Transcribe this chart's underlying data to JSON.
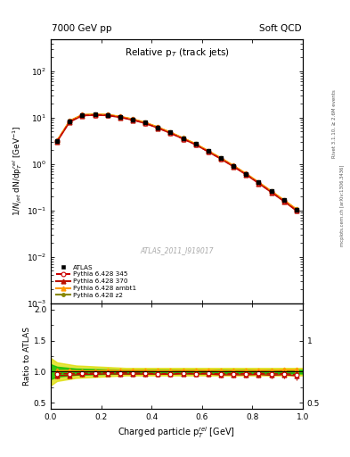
{
  "title_left": "7000 GeV pp",
  "title_right": "Soft QCD",
  "plot_title": "Relative p$_{T}$ (track jets)",
  "ylabel_main": "$1/N_{jet}$ dN/dp$_{T}^{rel}$ [GeV$^{-1}$]",
  "ylabel_ratio": "Ratio to ATLAS",
  "xlabel": "Charged particle p$_{T}^{rel}$ [GeV]",
  "right_label_top": "Rivet 3.1.10, ≥ 2.6M events",
  "right_label_bottom": "mcplots.cern.ch [arXiv:1306.3436]",
  "watermark": "ATLAS_2011_I919017",
  "xlim": [
    0.0,
    1.0
  ],
  "ylim_main": [
    0.001,
    500.0
  ],
  "ylim_ratio": [
    0.4,
    2.1
  ],
  "atlas_x": [
    0.025,
    0.075,
    0.125,
    0.175,
    0.225,
    0.275,
    0.325,
    0.375,
    0.425,
    0.475,
    0.525,
    0.575,
    0.625,
    0.675,
    0.725,
    0.775,
    0.825,
    0.875,
    0.925,
    0.975
  ],
  "atlas_y": [
    3.2,
    8.5,
    11.5,
    11.8,
    11.5,
    10.5,
    9.2,
    7.8,
    6.2,
    4.8,
    3.6,
    2.7,
    1.9,
    1.35,
    0.92,
    0.62,
    0.4,
    0.26,
    0.165,
    0.105
  ],
  "atlas_yerr": [
    0.15,
    0.3,
    0.4,
    0.4,
    0.4,
    0.35,
    0.3,
    0.25,
    0.2,
    0.15,
    0.12,
    0.09,
    0.07,
    0.05,
    0.035,
    0.025,
    0.015,
    0.012,
    0.008,
    0.006
  ],
  "p345_x": [
    0.025,
    0.075,
    0.125,
    0.175,
    0.225,
    0.275,
    0.325,
    0.375,
    0.425,
    0.475,
    0.525,
    0.575,
    0.625,
    0.675,
    0.725,
    0.775,
    0.825,
    0.875,
    0.925,
    0.975
  ],
  "p345_y": [
    3.1,
    8.2,
    11.2,
    11.5,
    11.3,
    10.3,
    9.0,
    7.6,
    6.0,
    4.65,
    3.5,
    2.62,
    1.85,
    1.3,
    0.89,
    0.6,
    0.39,
    0.25,
    0.16,
    0.1
  ],
  "p370_x": [
    0.025,
    0.075,
    0.125,
    0.175,
    0.225,
    0.275,
    0.325,
    0.375,
    0.425,
    0.475,
    0.525,
    0.575,
    0.625,
    0.675,
    0.725,
    0.775,
    0.825,
    0.875,
    0.925,
    0.975
  ],
  "p370_y": [
    3.0,
    8.0,
    11.0,
    11.3,
    11.1,
    10.1,
    8.85,
    7.5,
    5.95,
    4.6,
    3.48,
    2.6,
    1.83,
    1.28,
    0.875,
    0.588,
    0.382,
    0.245,
    0.157,
    0.098
  ],
  "pambt1_x": [
    0.025,
    0.075,
    0.125,
    0.175,
    0.225,
    0.275,
    0.325,
    0.375,
    0.425,
    0.475,
    0.525,
    0.575,
    0.625,
    0.675,
    0.725,
    0.775,
    0.825,
    0.875,
    0.925,
    0.975
  ],
  "pambt1_y": [
    3.25,
    8.65,
    11.65,
    11.95,
    11.75,
    10.7,
    9.4,
    7.95,
    6.3,
    4.88,
    3.68,
    2.75,
    1.95,
    1.37,
    0.94,
    0.63,
    0.41,
    0.265,
    0.17,
    0.108
  ],
  "pz2_x": [
    0.025,
    0.075,
    0.125,
    0.175,
    0.225,
    0.275,
    0.325,
    0.375,
    0.425,
    0.475,
    0.525,
    0.575,
    0.625,
    0.675,
    0.725,
    0.775,
    0.825,
    0.875,
    0.925,
    0.975
  ],
  "pz2_y": [
    3.2,
    8.55,
    11.55,
    11.85,
    11.65,
    10.6,
    9.3,
    7.88,
    6.25,
    4.83,
    3.64,
    2.72,
    1.92,
    1.35,
    0.925,
    0.622,
    0.405,
    0.261,
    0.167,
    0.106
  ],
  "ratio_345_y": [
    0.97,
    0.965,
    0.974,
    0.975,
    0.983,
    0.981,
    0.978,
    0.974,
    0.968,
    0.969,
    0.972,
    0.97,
    0.974,
    0.963,
    0.967,
    0.968,
    0.975,
    0.962,
    0.97,
    0.952
  ],
  "ratio_370_y": [
    0.937,
    0.941,
    0.957,
    0.958,
    0.965,
    0.962,
    0.961,
    0.962,
    0.96,
    0.958,
    0.967,
    0.963,
    0.963,
    0.948,
    0.95,
    0.948,
    0.955,
    0.942,
    0.952,
    0.933
  ],
  "ratio_ambt1_y": [
    1.016,
    1.018,
    1.013,
    1.013,
    1.022,
    1.019,
    1.022,
    1.019,
    1.016,
    1.017,
    1.022,
    1.019,
    1.026,
    1.015,
    1.022,
    1.016,
    1.025,
    1.019,
    1.03,
    1.029
  ],
  "ratio_z2_y": [
    1.0,
    1.006,
    1.004,
    1.004,
    1.013,
    1.01,
    1.011,
    1.01,
    1.008,
    1.006,
    1.011,
    1.007,
    1.011,
    1.0,
    1.005,
    1.003,
    1.013,
    1.004,
    1.012,
    1.01
  ],
  "ratio_yerr_345": [
    0.05,
    0.04,
    0.035,
    0.035,
    0.035,
    0.035,
    0.035,
    0.035,
    0.035,
    0.035,
    0.035,
    0.035,
    0.04,
    0.04,
    0.04,
    0.045,
    0.045,
    0.05,
    0.055,
    0.065
  ],
  "ratio_yerr_370": [
    0.05,
    0.04,
    0.035,
    0.035,
    0.035,
    0.035,
    0.035,
    0.035,
    0.035,
    0.035,
    0.035,
    0.035,
    0.04,
    0.04,
    0.04,
    0.045,
    0.045,
    0.05,
    0.055,
    0.065
  ],
  "ratio_yerr_ambt1": [
    0.05,
    0.04,
    0.035,
    0.035,
    0.035,
    0.035,
    0.035,
    0.035,
    0.035,
    0.035,
    0.035,
    0.035,
    0.04,
    0.04,
    0.04,
    0.045,
    0.045,
    0.05,
    0.055,
    0.065
  ],
  "ratio_yerr_z2": [
    0.05,
    0.04,
    0.035,
    0.035,
    0.035,
    0.035,
    0.035,
    0.035,
    0.035,
    0.035,
    0.035,
    0.035,
    0.04,
    0.04,
    0.04,
    0.045,
    0.045,
    0.05,
    0.055,
    0.065
  ],
  "band_x": [
    0.0,
    0.025,
    0.1,
    0.2,
    0.3,
    0.4,
    0.5,
    0.6,
    0.7,
    0.8,
    0.9,
    1.0
  ],
  "band_green_low": [
    0.88,
    0.92,
    0.95,
    0.96,
    0.97,
    0.97,
    0.97,
    0.97,
    0.97,
    0.97,
    0.97,
    0.97
  ],
  "band_green_high": [
    1.12,
    1.08,
    1.05,
    1.04,
    1.03,
    1.03,
    1.03,
    1.03,
    1.03,
    1.03,
    1.03,
    1.03
  ],
  "band_yellow_low": [
    0.78,
    0.85,
    0.9,
    0.92,
    0.94,
    0.94,
    0.94,
    0.94,
    0.94,
    0.94,
    0.94,
    0.94
  ],
  "band_yellow_high": [
    1.22,
    1.15,
    1.1,
    1.08,
    1.06,
    1.06,
    1.06,
    1.06,
    1.06,
    1.06,
    1.06,
    1.06
  ],
  "color_345": "#cc0000",
  "color_370": "#bb1100",
  "color_ambt1": "#ff9900",
  "color_z2": "#888800",
  "color_atlas": "#000000",
  "color_green_band": "#00bb00",
  "color_yellow_band": "#dddd00",
  "bg_color": "#ffffff"
}
